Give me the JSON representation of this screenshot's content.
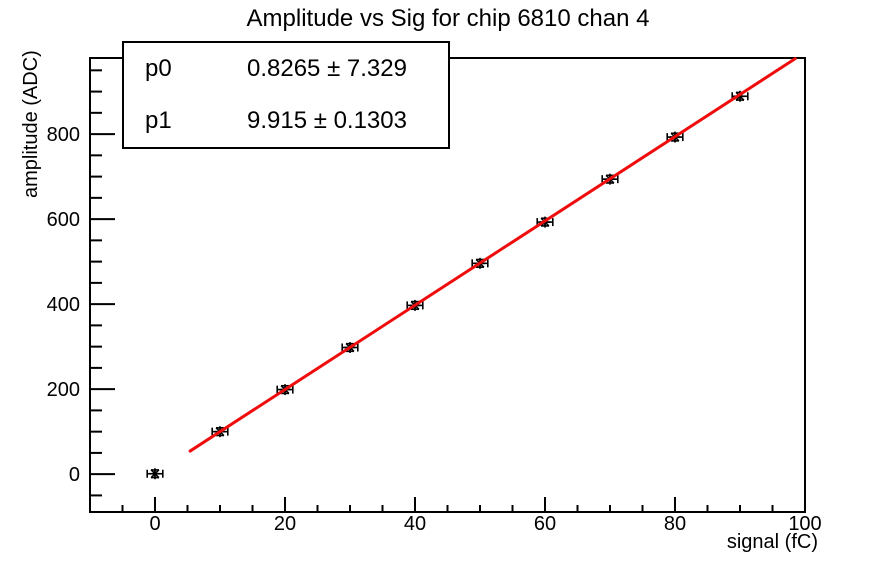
{
  "title": "Amplitude vs Sig for chip 6810 chan 4",
  "stats": {
    "rows": [
      {
        "name": "p0",
        "value": "0.8265 ± 7.329"
      },
      {
        "name": "p1",
        "value": "9.915 ± 0.1303"
      }
    ]
  },
  "axes": {
    "x": {
      "label": "signal (fC)",
      "ticks": [
        0,
        20,
        40,
        60,
        80,
        100
      ],
      "minor_step": 5,
      "lim": [
        -10,
        100
      ]
    },
    "y": {
      "label": "amplitude (ADC)",
      "ticks": [
        0,
        200,
        400,
        600,
        800
      ],
      "minor_step": 50,
      "lim": [
        -89,
        979
      ]
    }
  },
  "chart_data": {
    "type": "scatter",
    "title": "Amplitude vs Sig for chip 6810 chan 4",
    "xlabel": "signal (fC)",
    "ylabel": "amplitude (ADC)",
    "x": [
      0,
      10,
      20,
      30,
      40,
      50,
      60,
      70,
      80,
      90
    ],
    "y": [
      1,
      100,
      199,
      298,
      397,
      496,
      593,
      694,
      793,
      889
    ],
    "xerr": 1.2,
    "yerr": 9,
    "xlim": [
      -10,
      100
    ],
    "ylim": [
      -89,
      979
    ],
    "grid": false,
    "legend": "none",
    "marker": "asterisk",
    "marker_color": "#000000",
    "frame_color": "#000000",
    "fit": {
      "type": "linear",
      "p0": 0.8265,
      "p0_err": 7.329,
      "p1": 9.915,
      "p1_err": 0.1303,
      "line_x": [
        5.4,
        98.5
      ],
      "color": "#ee0d0c"
    }
  }
}
